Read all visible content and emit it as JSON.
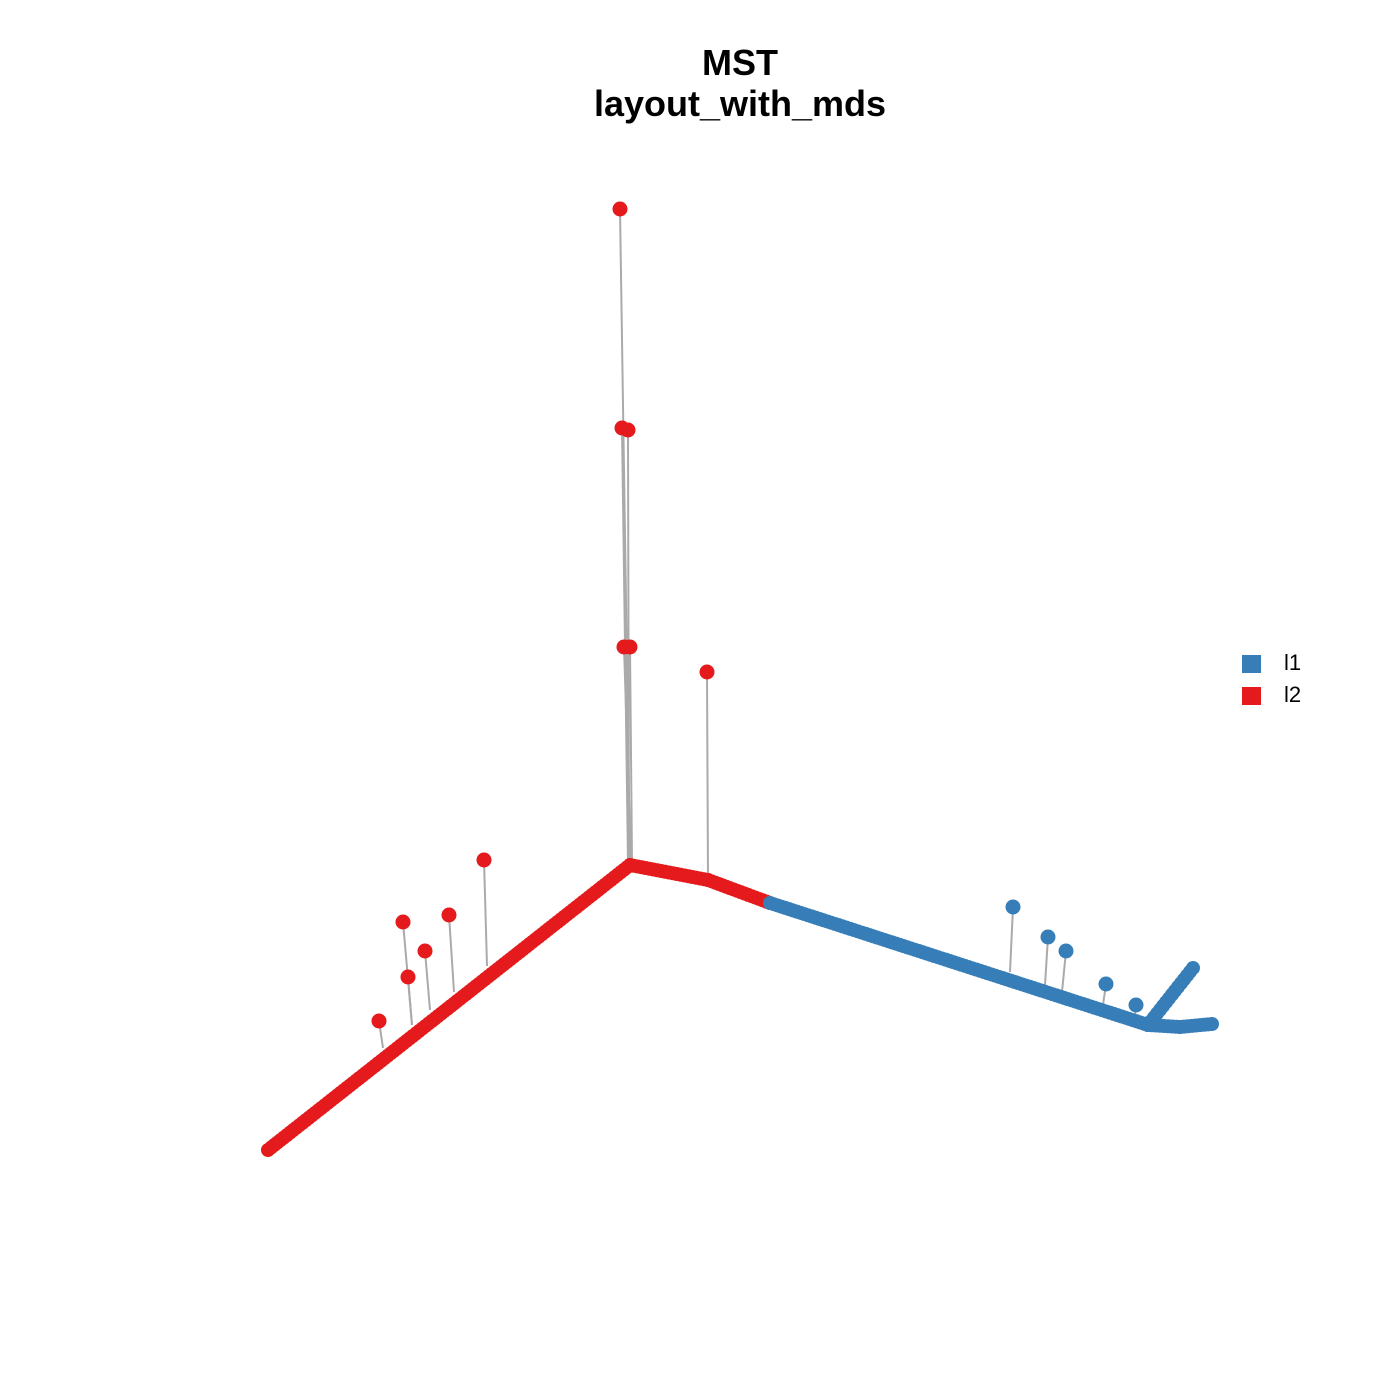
{
  "title": {
    "line1": "MST",
    "line2": "layout_with_mds"
  },
  "legend": {
    "items": [
      {
        "label": "l1",
        "color": "#377eb8"
      },
      {
        "label": "l2",
        "color": "#e41a1c"
      }
    ]
  }
}
